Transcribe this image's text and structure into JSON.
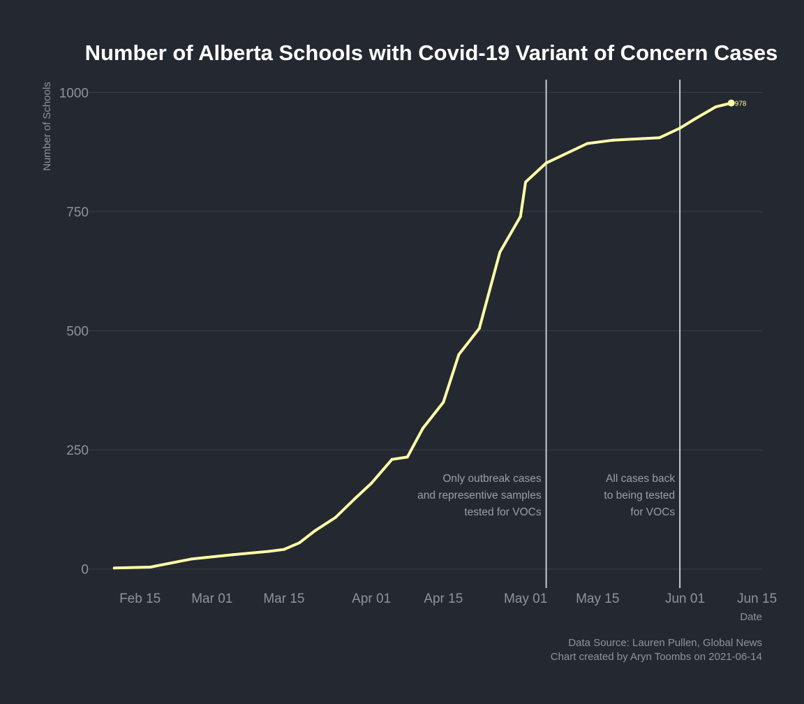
{
  "chart_data": {
    "type": "line",
    "title": "Number of Alberta Schools with Covid-19 Variant of Concern Cases",
    "xlabel": "Date",
    "ylabel": "Number of Schools",
    "ylim": [
      -40,
      1030
    ],
    "xlim": [
      "2021-02-05",
      "2021-06-16"
    ],
    "grid": true,
    "line_color": "#ffffa8",
    "x_ticks": [
      {
        "date": "2021-02-15",
        "label": "Feb 15"
      },
      {
        "date": "2021-03-01",
        "label": "Mar 01"
      },
      {
        "date": "2021-03-15",
        "label": "Mar 15"
      },
      {
        "date": "2021-04-01",
        "label": "Apr 01"
      },
      {
        "date": "2021-04-15",
        "label": "Apr 15"
      },
      {
        "date": "2021-05-01",
        "label": "May 01"
      },
      {
        "date": "2021-05-15",
        "label": "May 15"
      },
      {
        "date": "2021-06-01",
        "label": "Jun 01"
      },
      {
        "date": "2021-06-15",
        "label": "Jun 15"
      }
    ],
    "y_ticks": [
      0,
      250,
      500,
      750,
      1000
    ],
    "series": [
      {
        "x": [
          "2021-02-10",
          "2021-02-17",
          "2021-02-25",
          "2021-03-05",
          "2021-03-12",
          "2021-03-15",
          "2021-03-18",
          "2021-03-21",
          "2021-03-25",
          "2021-03-29",
          "2021-04-01",
          "2021-04-05",
          "2021-04-08",
          "2021-04-11",
          "2021-04-15",
          "2021-04-18",
          "2021-04-22",
          "2021-04-26",
          "2021-04-30",
          "2021-05-01",
          "2021-05-05",
          "2021-05-13",
          "2021-05-18",
          "2021-05-27",
          "2021-05-31",
          "2021-06-03",
          "2021-06-07",
          "2021-06-10"
        ],
        "y": [
          2,
          4,
          21,
          30,
          37,
          41,
          55,
          80,
          108,
          150,
          180,
          230,
          235,
          295,
          350,
          450,
          505,
          665,
          740,
          812,
          852,
          893,
          900,
          905,
          925,
          945,
          970,
          978
        ]
      }
    ],
    "end_point": {
      "date": "2021-06-10",
      "value": 978,
      "label": "978"
    },
    "annotations": [
      {
        "date": "2021-05-05",
        "lines": [
          "Only outbreak cases",
          "and representive samples",
          "tested for VOCs"
        ]
      },
      {
        "date": "2021-05-31",
        "lines": [
          "All cases back",
          "to being tested",
          "for VOCs"
        ]
      }
    ],
    "caption": [
      "Data Source: Lauren Pullen, Global News",
      "Chart created by Aryn Toombs on 2021-06-14"
    ]
  }
}
